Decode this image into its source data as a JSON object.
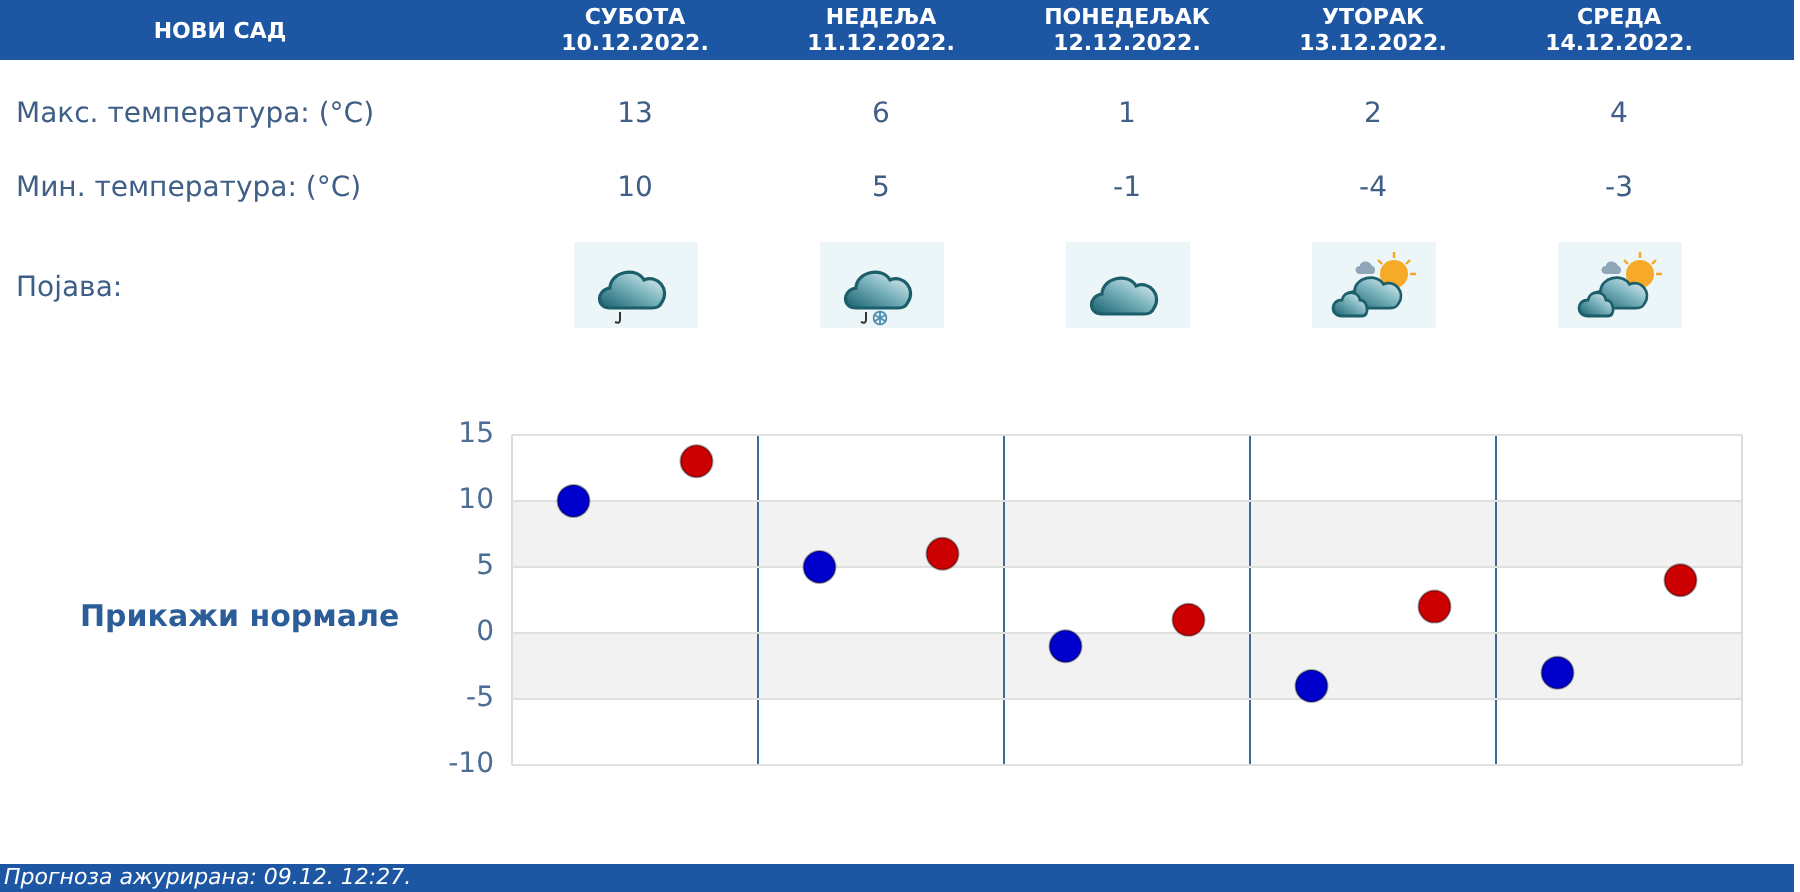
{
  "chart_data": {
    "type": "scatter",
    "title": "НОВИ САД",
    "categories": [
      null,
      null,
      null,
      null,
      null
    ],
    "series": [
      {
        "color": "#cc0000",
        "values": [
          13,
          6,
          1,
          2,
          4
        ]
      },
      {
        "color": "#0000cc",
        "values": [
          10,
          5,
          -1,
          -4,
          -3
        ]
      }
    ],
    "ylim": [
      -10,
      15
    ],
    "yticks": [
      -10,
      -5,
      0,
      5,
      10,
      15
    ],
    "grid": true,
    "marker": "circle",
    "data_labels": true,
    "bands": [
      {
        "axis": "y",
        "from": 5,
        "to": 10,
        "color": "#f2f2f2"
      },
      {
        "axis": "y",
        "from": -5,
        "to": 0,
        "color": "#f2f2f2"
      }
    ],
    "annotations": [
      "СУБОТА\n10.12.2022.",
      "НЕДЕЉА\n11.12.2022.",
      "ПОНЕДЕЉАК\n12.12.2022.",
      "УТОРАК\n13.12.2022.",
      "СРЕДА\n14.12.2022.",
      "Макс. температура: (°C)",
      "Мин. температура: (°C)",
      "Појава:",
      "Прикажи нормале",
      "Прогноза ажурирана: 09.12. 12:27."
    ]
  }
}
